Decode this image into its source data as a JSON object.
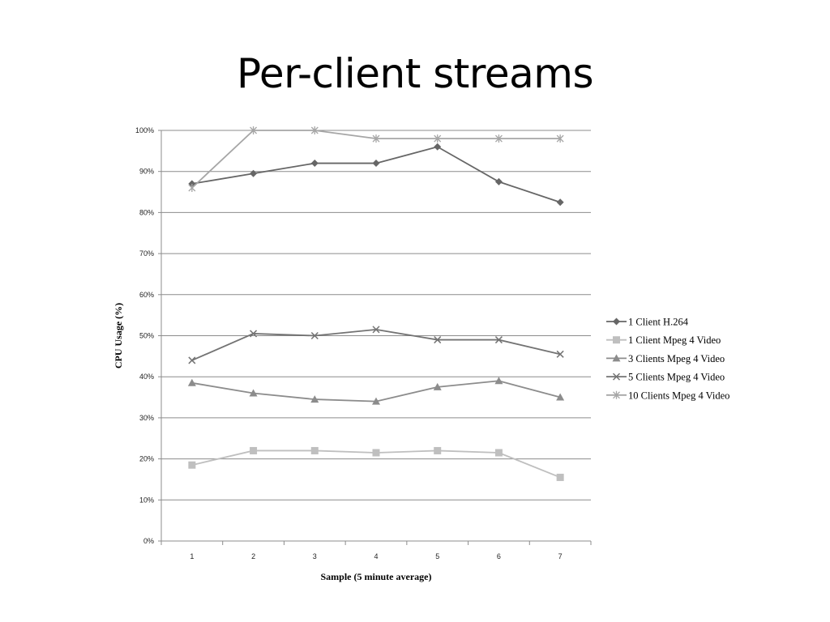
{
  "slide": {
    "title": "Per-client streams"
  },
  "chart_data": {
    "type": "line",
    "title": "",
    "xlabel": "Sample (5 minute average)",
    "ylabel": "CPU Usage (%)",
    "ylim": [
      0,
      100
    ],
    "y_tick_step": 10,
    "y_tick_suffix": "%",
    "grid": true,
    "legend_position": "right",
    "categories": [
      "1",
      "2",
      "3",
      "4",
      "5",
      "6",
      "7"
    ],
    "series": [
      {
        "name": "1 Client H.264",
        "marker": "diamond",
        "color": "#666666",
        "values": [
          87,
          89.5,
          92,
          92,
          96,
          87.5,
          82.5
        ]
      },
      {
        "name": "1 Client Mpeg 4 Video",
        "marker": "square",
        "color": "#bfbfbf",
        "values": [
          18.5,
          22,
          22,
          21.5,
          22,
          21.5,
          15.5
        ]
      },
      {
        "name": "3 Clients Mpeg 4 Video",
        "marker": "triangle",
        "color": "#8c8c8c",
        "values": [
          38.5,
          36,
          34.5,
          34,
          37.5,
          39,
          35
        ]
      },
      {
        "name": "5 Clients Mpeg 4 Video",
        "marker": "x",
        "color": "#737373",
        "values": [
          44,
          50.5,
          50,
          51.5,
          49,
          49,
          45.5
        ]
      },
      {
        "name": "10 Clients Mpeg 4 Video",
        "marker": "star",
        "color": "#a6a6a6",
        "values": [
          86,
          100,
          100,
          98,
          98,
          98,
          98
        ]
      }
    ]
  }
}
